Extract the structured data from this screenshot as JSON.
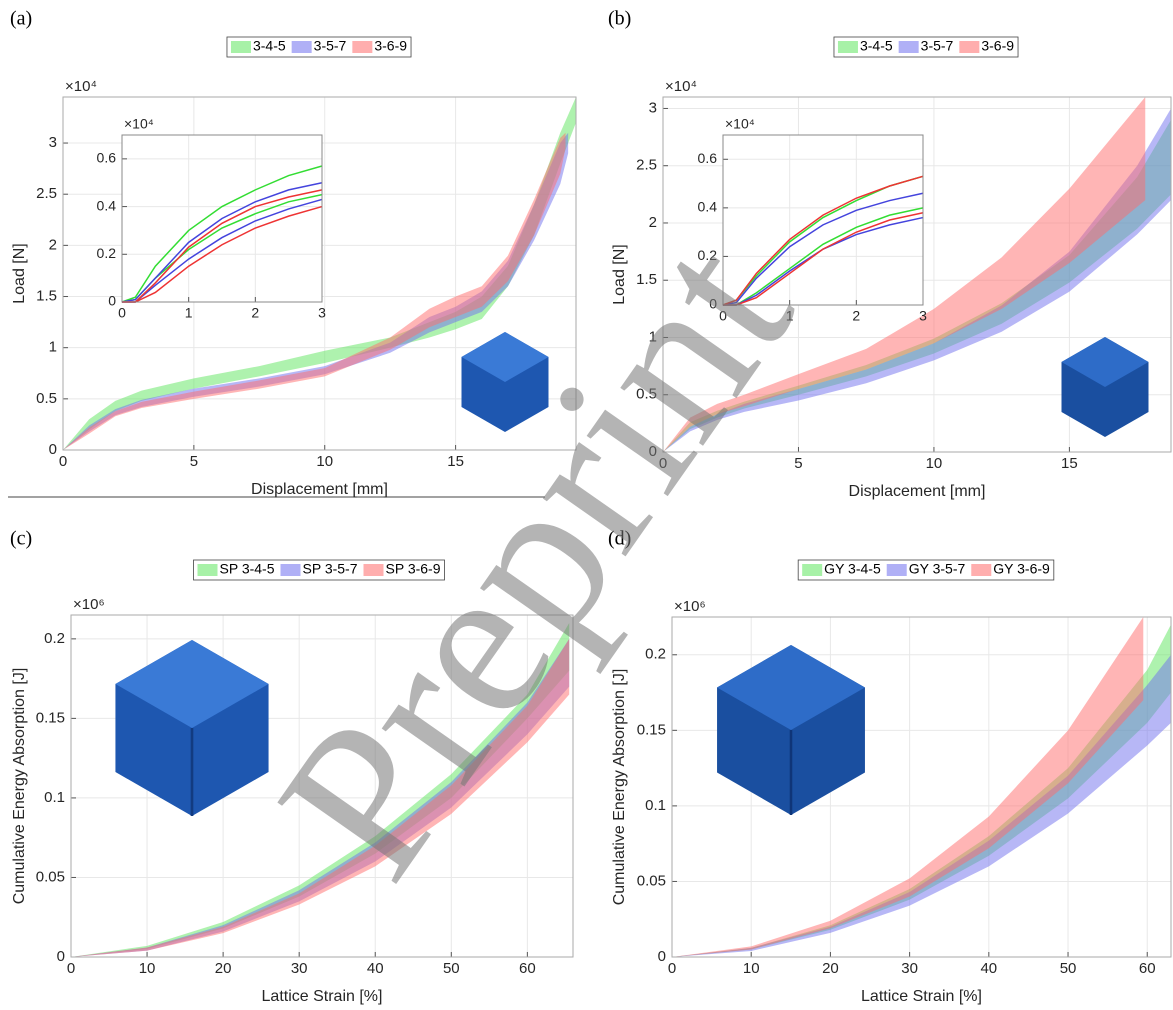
{
  "chart_data": [
    {
      "type": "band",
      "panel": "(a)",
      "x_label": "Displacement [mm]",
      "y_label": "Load [N]",
      "y_exponent": "×10⁴",
      "xlim": [
        0,
        19.6
      ],
      "ylim": [
        0,
        3.45
      ],
      "xticks": [
        0,
        5,
        10,
        15
      ],
      "yticks": [
        0,
        0.5,
        1,
        1.5,
        2,
        2.5,
        3
      ],
      "grid": true,
      "series": [
        {
          "name": "3-4-5",
          "color": "#5ee65e",
          "x": [
            0,
            1,
            2,
            3,
            5,
            7.5,
            10,
            12.5,
            14,
            15,
            16,
            17,
            18,
            19,
            19.6
          ],
          "lower": [
            0,
            0.2,
            0.38,
            0.48,
            0.6,
            0.72,
            0.85,
            1.0,
            1.1,
            1.18,
            1.28,
            1.6,
            2.1,
            2.8,
            3.2
          ],
          "upper": [
            0,
            0.3,
            0.48,
            0.58,
            0.7,
            0.82,
            0.97,
            1.1,
            1.25,
            1.35,
            1.5,
            1.8,
            2.4,
            3.1,
            3.45
          ]
        },
        {
          "name": "3-5-7",
          "color": "#7070ee",
          "x": [
            0,
            1,
            2,
            3,
            5,
            7.5,
            10,
            12.5,
            14,
            15,
            16,
            17,
            18,
            19,
            19.3
          ],
          "lower": [
            0,
            0.18,
            0.34,
            0.42,
            0.52,
            0.62,
            0.74,
            0.95,
            1.15,
            1.25,
            1.35,
            1.6,
            2.05,
            2.6,
            2.9
          ],
          "upper": [
            0,
            0.24,
            0.4,
            0.49,
            0.6,
            0.7,
            0.82,
            1.05,
            1.3,
            1.4,
            1.55,
            1.85,
            2.4,
            3.0,
            3.1
          ]
        },
        {
          "name": "3-6-9",
          "color": "#ff6b6b",
          "x": [
            0,
            1,
            2,
            3,
            5,
            7.5,
            10,
            12.5,
            14,
            15,
            16,
            17,
            18,
            19,
            19.2
          ],
          "lower": [
            0,
            0.16,
            0.33,
            0.41,
            0.5,
            0.6,
            0.72,
            0.98,
            1.2,
            1.3,
            1.4,
            1.65,
            2.1,
            2.7,
            2.95
          ],
          "upper": [
            0,
            0.22,
            0.38,
            0.47,
            0.57,
            0.68,
            0.8,
            1.1,
            1.38,
            1.5,
            1.6,
            1.9,
            2.45,
            3.05,
            3.1
          ]
        }
      ],
      "inset": {
        "type": "line",
        "y_exponent": "×10⁴",
        "xlim": [
          0,
          3
        ],
        "ylim": [
          0,
          0.7
        ],
        "xticks": [
          0,
          1,
          2,
          3
        ],
        "yticks": [
          0,
          0.2,
          0.4,
          0.6
        ],
        "grid": true,
        "series": [
          {
            "color": "#33dd33",
            "x": [
              0,
              0.2,
              0.5,
              1,
              1.5,
              2,
              2.5,
              3
            ],
            "lower": [
              0,
              0.01,
              0.1,
              0.22,
              0.31,
              0.37,
              0.42,
              0.45
            ],
            "upper": [
              0,
              0.02,
              0.15,
              0.3,
              0.4,
              0.47,
              0.53,
              0.57
            ]
          },
          {
            "color": "#4444dd",
            "x": [
              0,
              0.2,
              0.5,
              1,
              1.5,
              2,
              2.5,
              3
            ],
            "lower": [
              0,
              0,
              0.07,
              0.18,
              0.27,
              0.34,
              0.39,
              0.43
            ],
            "upper": [
              0,
              0.01,
              0.1,
              0.25,
              0.35,
              0.42,
              0.47,
              0.5
            ]
          },
          {
            "color": "#ee3333",
            "x": [
              0,
              0.2,
              0.5,
              1,
              1.5,
              2,
              2.5,
              3
            ],
            "lower": [
              0,
              0,
              0.04,
              0.15,
              0.24,
              0.31,
              0.36,
              0.4
            ],
            "upper": [
              0,
              0,
              0.08,
              0.23,
              0.33,
              0.4,
              0.44,
              0.47
            ]
          }
        ]
      }
    },
    {
      "type": "band",
      "panel": "(b)",
      "x_label": "Displacement [mm]",
      "y_label": "Load [N]",
      "y_exponent": "×10⁴",
      "xlim": [
        0,
        18.75
      ],
      "ylim": [
        0,
        3.1
      ],
      "xticks": [
        0,
        5,
        10,
        15
      ],
      "yticks": [
        0,
        0.5,
        1,
        1.5,
        2,
        2.5,
        3
      ],
      "grid": true,
      "series": [
        {
          "name": "3-4-5",
          "color": "#5ee65e",
          "x": [
            0,
            1,
            2,
            3,
            5,
            7.5,
            10,
            12.5,
            15,
            17.5,
            18.75
          ],
          "lower": [
            0,
            0.2,
            0.3,
            0.38,
            0.5,
            0.66,
            0.86,
            1.12,
            1.48,
            1.95,
            2.25
          ],
          "upper": [
            0,
            0.26,
            0.36,
            0.44,
            0.58,
            0.76,
            0.99,
            1.3,
            1.72,
            2.4,
            2.9
          ]
        },
        {
          "name": "3-5-7",
          "color": "#7070ee",
          "x": [
            0,
            1,
            2,
            3,
            5,
            7.5,
            10,
            12.5,
            15,
            17.5,
            18.75
          ],
          "lower": [
            0,
            0.18,
            0.28,
            0.35,
            0.45,
            0.6,
            0.8,
            1.05,
            1.4,
            1.9,
            2.2
          ],
          "upper": [
            0,
            0.22,
            0.33,
            0.42,
            0.55,
            0.72,
            0.95,
            1.28,
            1.75,
            2.5,
            3.0
          ]
        },
        {
          "name": "3-6-9",
          "color": "#ff6b6b",
          "x": [
            0,
            1,
            2,
            3,
            5,
            7.5,
            10,
            12.5,
            15,
            17.8
          ],
          "lower": [
            0,
            0.22,
            0.33,
            0.4,
            0.55,
            0.72,
            0.95,
            1.25,
            1.65,
            2.2
          ],
          "upper": [
            0,
            0.3,
            0.42,
            0.5,
            0.68,
            0.9,
            1.25,
            1.7,
            2.3,
            3.1
          ]
        }
      ],
      "inset": {
        "type": "line",
        "y_exponent": "×10⁴",
        "xlim": [
          0,
          3
        ],
        "ylim": [
          0,
          0.7
        ],
        "xticks": [
          0,
          1,
          2,
          3
        ],
        "yticks": [
          0,
          0.2,
          0.4,
          0.6
        ],
        "grid": true,
        "series": [
          {
            "color": "#33dd33",
            "x": [
              0,
              0.2,
              0.5,
              1,
              1.5,
              2,
              2.5,
              3
            ],
            "lower": [
              0,
              0,
              0.05,
              0.15,
              0.25,
              0.32,
              0.37,
              0.4
            ],
            "upper": [
              0,
              0.02,
              0.12,
              0.26,
              0.36,
              0.43,
              0.49,
              0.53
            ]
          },
          {
            "color": "#4444dd",
            "x": [
              0,
              0.2,
              0.5,
              1,
              1.5,
              2,
              2.5,
              3
            ],
            "lower": [
              0,
              0,
              0.04,
              0.14,
              0.23,
              0.29,
              0.33,
              0.36
            ],
            "upper": [
              0,
              0.01,
              0.11,
              0.24,
              0.33,
              0.39,
              0.43,
              0.46
            ]
          },
          {
            "color": "#ee3333",
            "x": [
              0,
              0.2,
              0.5,
              1,
              1.5,
              2,
              2.5,
              3
            ],
            "lower": [
              0,
              0,
              0.03,
              0.13,
              0.23,
              0.3,
              0.35,
              0.38
            ],
            "upper": [
              0,
              0.02,
              0.13,
              0.27,
              0.37,
              0.44,
              0.49,
              0.53
            ]
          }
        ]
      }
    },
    {
      "type": "band",
      "panel": "(c)",
      "x_label": "Lattice Strain [%]",
      "y_label": "Cumulative Energy Absorption [J]",
      "y_exponent": "×10⁶",
      "xlim": [
        0,
        66
      ],
      "ylim": [
        0,
        0.215
      ],
      "xticks": [
        0,
        10,
        20,
        30,
        40,
        50,
        60
      ],
      "yticks": [
        0,
        0.05,
        0.1,
        0.15,
        0.2
      ],
      "grid": true,
      "series": [
        {
          "name": "SP 3-4-5",
          "color": "#5ee65e",
          "x": [
            0,
            10,
            20,
            30,
            40,
            50,
            60,
            65.5
          ],
          "lower": [
            0,
            0.005,
            0.018,
            0.038,
            0.065,
            0.1,
            0.15,
            0.18
          ],
          "upper": [
            0,
            0.007,
            0.022,
            0.045,
            0.076,
            0.115,
            0.165,
            0.21
          ]
        },
        {
          "name": "SP 3-5-7",
          "color": "#7070ee",
          "x": [
            0,
            10,
            20,
            30,
            40,
            50,
            60,
            65.5
          ],
          "lower": [
            0,
            0.004,
            0.016,
            0.035,
            0.06,
            0.094,
            0.14,
            0.17
          ],
          "upper": [
            0,
            0.006,
            0.02,
            0.042,
            0.072,
            0.11,
            0.16,
            0.2
          ]
        },
        {
          "name": "SP 3-6-9",
          "color": "#ff6b6b",
          "x": [
            0,
            10,
            20,
            30,
            40,
            50,
            60,
            65.5
          ],
          "lower": [
            0,
            0.004,
            0.015,
            0.033,
            0.057,
            0.09,
            0.135,
            0.165
          ],
          "upper": [
            0,
            0.006,
            0.019,
            0.04,
            0.07,
            0.108,
            0.158,
            0.2
          ]
        }
      ]
    },
    {
      "type": "band",
      "panel": "(d)",
      "x_label": "Lattice Strain [%]",
      "y_label": "Cumulative Energy Absorption [J]",
      "y_exponent": "×10⁶",
      "xlim": [
        0,
        63
      ],
      "ylim": [
        0,
        0.225
      ],
      "xticks": [
        0,
        10,
        20,
        30,
        40,
        50,
        60
      ],
      "yticks": [
        0,
        0.05,
        0.1,
        0.15,
        0.2
      ],
      "grid": true,
      "series": [
        {
          "name": "GY 3-4-5",
          "color": "#5ee65e",
          "x": [
            0,
            10,
            20,
            30,
            40,
            50,
            60,
            63
          ],
          "lower": [
            0,
            0.005,
            0.018,
            0.038,
            0.067,
            0.105,
            0.155,
            0.175
          ],
          "upper": [
            0,
            0.006,
            0.021,
            0.045,
            0.08,
            0.125,
            0.19,
            0.22
          ]
        },
        {
          "name": "GY 3-5-7",
          "color": "#7070ee",
          "x": [
            0,
            10,
            20,
            30,
            40,
            50,
            60,
            63
          ],
          "lower": [
            0,
            0.004,
            0.016,
            0.034,
            0.06,
            0.095,
            0.14,
            0.155
          ],
          "upper": [
            0,
            0.006,
            0.02,
            0.043,
            0.077,
            0.12,
            0.18,
            0.2
          ]
        },
        {
          "name": "GY 3-6-9",
          "color": "#ff6b6b",
          "x": [
            0,
            10,
            20,
            30,
            40,
            50,
            59.5
          ],
          "lower": [
            0,
            0.005,
            0.019,
            0.04,
            0.072,
            0.115,
            0.17
          ],
          "upper": [
            0,
            0.007,
            0.024,
            0.052,
            0.093,
            0.15,
            0.225
          ]
        }
      ]
    }
  ],
  "watermark": "Preprint"
}
